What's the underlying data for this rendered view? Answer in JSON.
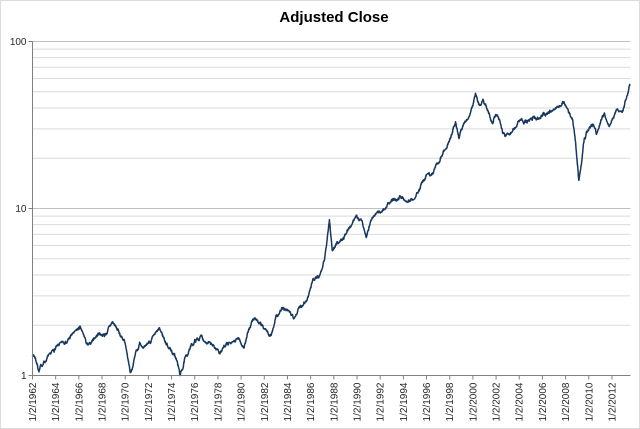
{
  "chart_data": {
    "type": "scatter",
    "title": "Adjusted Close",
    "series_name": "Adjusted Close",
    "y_axis": {
      "scale": "log",
      "min": 1,
      "max": 100,
      "tick_values": [
        1,
        10,
        100
      ],
      "tick_labels": [
        "1",
        "10",
        "100"
      ],
      "minor_gridlines": true
    },
    "x_axis": {
      "min_year": 1962,
      "max_year": 2013.6,
      "label_start_year": 1962,
      "label_step_years": 2,
      "tick_labels": [
        "1/2/1962",
        "1/2/1964",
        "1/2/1966",
        "1/2/1968",
        "1/2/1970",
        "1/2/1972",
        "1/2/1974",
        "1/2/1976",
        "1/2/1978",
        "1/2/1980",
        "1/2/1982",
        "1/2/1984",
        "1/2/1986",
        "1/2/1988",
        "1/2/1990",
        "1/2/1992",
        "1/2/1994",
        "1/2/1996",
        "1/2/1998",
        "1/2/2000",
        "1/2/2002",
        "1/2/2004",
        "1/2/2006",
        "1/2/2008",
        "1/2/2010",
        "1/2/2012"
      ]
    },
    "colors": {
      "series": "#17375E",
      "minor_grid": "#DBDBDB",
      "major_grid": "#C0C0C0",
      "axis": "#808080",
      "tick_text": "#262626",
      "title_text": "#000000"
    },
    "series": [
      {
        "name": "Adjusted Close",
        "points": [
          [
            1962.0,
            1.35
          ],
          [
            1962.25,
            1.3
          ],
          [
            1962.55,
            1.08
          ],
          [
            1963.0,
            1.22
          ],
          [
            1963.5,
            1.32
          ],
          [
            1964.0,
            1.45
          ],
          [
            1964.5,
            1.55
          ],
          [
            1965.0,
            1.62
          ],
          [
            1965.6,
            1.78
          ],
          [
            1966.1,
            1.92
          ],
          [
            1966.8,
            1.48
          ],
          [
            1967.3,
            1.7
          ],
          [
            1967.8,
            1.82
          ],
          [
            1968.2,
            1.74
          ],
          [
            1968.9,
            2.05
          ],
          [
            1969.4,
            1.83
          ],
          [
            1969.9,
            1.65
          ],
          [
            1970.45,
            1.02
          ],
          [
            1970.9,
            1.35
          ],
          [
            1971.3,
            1.58
          ],
          [
            1971.7,
            1.45
          ],
          [
            1972.1,
            1.58
          ],
          [
            1972.95,
            1.88
          ],
          [
            1973.5,
            1.58
          ],
          [
            1974.0,
            1.42
          ],
          [
            1974.4,
            1.25
          ],
          [
            1974.75,
            0.99
          ],
          [
            1975.1,
            1.22
          ],
          [
            1975.5,
            1.42
          ],
          [
            1976.0,
            1.62
          ],
          [
            1976.6,
            1.7
          ],
          [
            1977.1,
            1.58
          ],
          [
            1977.6,
            1.48
          ],
          [
            1978.15,
            1.38
          ],
          [
            1978.7,
            1.56
          ],
          [
            1979.1,
            1.52
          ],
          [
            1979.75,
            1.64
          ],
          [
            1980.25,
            1.5
          ],
          [
            1980.9,
            2.08
          ],
          [
            1981.3,
            2.2
          ],
          [
            1981.9,
            1.92
          ],
          [
            1982.55,
            1.7
          ],
          [
            1982.95,
            2.2
          ],
          [
            1983.5,
            2.55
          ],
          [
            1983.95,
            2.42
          ],
          [
            1984.55,
            2.25
          ],
          [
            1985.1,
            2.58
          ],
          [
            1985.7,
            2.9
          ],
          [
            1986.2,
            3.8
          ],
          [
            1986.7,
            3.95
          ],
          [
            1987.2,
            4.9
          ],
          [
            1987.62,
            8.3
          ],
          [
            1987.85,
            5.7
          ],
          [
            1988.3,
            6.3
          ],
          [
            1988.85,
            6.75
          ],
          [
            1989.5,
            8.1
          ],
          [
            1989.85,
            9.1
          ],
          [
            1990.45,
            8.4
          ],
          [
            1990.8,
            6.9
          ],
          [
            1991.2,
            8.4
          ],
          [
            1991.95,
            9.6
          ],
          [
            1992.5,
            10.3
          ],
          [
            1993.0,
            11.0
          ],
          [
            1993.8,
            11.9
          ],
          [
            1994.35,
            11.2
          ],
          [
            1994.95,
            11.7
          ],
          [
            1995.5,
            13.6
          ],
          [
            1996.0,
            15.5
          ],
          [
            1996.55,
            16.6
          ],
          [
            1997.05,
            19.0
          ],
          [
            1997.55,
            23.0
          ],
          [
            1997.85,
            24.0
          ],
          [
            1998.2,
            28.0
          ],
          [
            1998.5,
            33.5
          ],
          [
            1998.8,
            27.0
          ],
          [
            1999.2,
            33.0
          ],
          [
            1999.6,
            35.5
          ],
          [
            2000.0,
            41.0
          ],
          [
            2000.22,
            47.5
          ],
          [
            2000.6,
            42.0
          ],
          [
            2000.9,
            45.0
          ],
          [
            2001.25,
            38.0
          ],
          [
            2001.7,
            33.0
          ],
          [
            2001.95,
            37.0
          ],
          [
            2002.3,
            33.0
          ],
          [
            2002.78,
            26.5
          ],
          [
            2003.1,
            28.0
          ],
          [
            2003.7,
            31.5
          ],
          [
            2004.2,
            33.5
          ],
          [
            2004.7,
            32.5
          ],
          [
            2005.2,
            34.5
          ],
          [
            2005.75,
            35.5
          ],
          [
            2006.3,
            37.0
          ],
          [
            2006.85,
            39.5
          ],
          [
            2007.35,
            41.5
          ],
          [
            2007.8,
            43.0
          ],
          [
            2008.2,
            38.5
          ],
          [
            2008.6,
            35.0
          ],
          [
            2008.85,
            26.0
          ],
          [
            2009.15,
            14.5
          ],
          [
            2009.6,
            25.5
          ],
          [
            2010.0,
            30.5
          ],
          [
            2010.4,
            32.5
          ],
          [
            2010.65,
            28.5
          ],
          [
            2011.05,
            33.5
          ],
          [
            2011.35,
            37.5
          ],
          [
            2011.75,
            31.5
          ],
          [
            2012.05,
            35.0
          ],
          [
            2012.35,
            38.0
          ],
          [
            2012.7,
            39.5
          ],
          [
            2012.95,
            38.5
          ],
          [
            2013.15,
            43.0
          ],
          [
            2013.35,
            47.0
          ],
          [
            2013.55,
            55.0
          ]
        ]
      }
    ]
  }
}
